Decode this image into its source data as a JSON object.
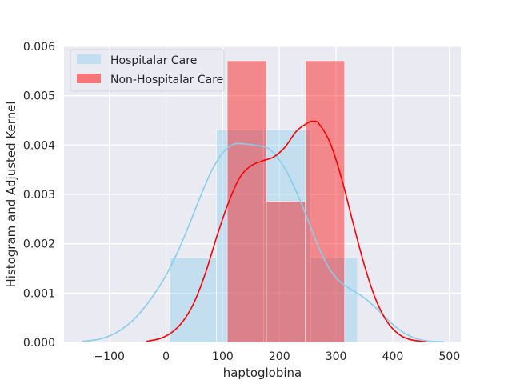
{
  "chart_data": {
    "type": "histogram",
    "title": "",
    "xlabel": "haptoglobina",
    "ylabel": "Histogram and Adjusted Kernel",
    "xlim": [
      -180,
      520
    ],
    "ylim": [
      0,
      0.006
    ],
    "x_ticks": [
      -100,
      0,
      100,
      200,
      300,
      400,
      500
    ],
    "x_tick_labels": [
      "−100",
      "0",
      "100",
      "200",
      "300",
      "400",
      "500"
    ],
    "y_ticks": [
      0.0,
      0.001,
      0.002,
      0.003,
      0.004,
      0.005,
      0.006
    ],
    "y_tick_labels": [
      "0.000",
      "0.001",
      "0.002",
      "0.003",
      "0.004",
      "0.005",
      "0.006"
    ],
    "grid": true,
    "legend_position": "top-left",
    "series": [
      {
        "name": "Hospitalar Care",
        "color": "#87ceeb",
        "bins": [
          {
            "x0": 6,
            "x1": 89,
            "density": 0.00172
          },
          {
            "x0": 89,
            "x1": 172,
            "density": 0.00431
          },
          {
            "x0": 172,
            "x1": 255,
            "density": 0.00431
          },
          {
            "x0": 255,
            "x1": 338,
            "density": 0.00172
          }
        ],
        "kde": {
          "x": [
            -148,
            -120,
            -100,
            -80,
            -60,
            -40,
            -20,
            0,
            20,
            40,
            60,
            80,
            100,
            120,
            140,
            160,
            175,
            190,
            210,
            230,
            250,
            270,
            290,
            310,
            330,
            350,
            370,
            390,
            410,
            430,
            450,
            470,
            490
          ],
          "y": [
            2e-05,
            6e-05,
            0.00013,
            0.00025,
            0.00043,
            0.00068,
            0.00099,
            0.00136,
            0.00182,
            0.00236,
            0.00294,
            0.00347,
            0.00384,
            0.00402,
            0.00402,
            0.00399,
            0.00396,
            0.00384,
            0.00352,
            0.00305,
            0.00249,
            0.00191,
            0.00146,
            0.0012,
            0.00105,
            0.0009,
            0.0007,
            0.00047,
            0.00027,
            0.00013,
            5e-05,
            2e-05,
            1e-05
          ]
        }
      },
      {
        "name": "Non-Hospitalar Care",
        "color": "#ff0000",
        "bins": [
          {
            "x0": 108,
            "x1": 177,
            "density": 0.00571
          },
          {
            "x0": 177,
            "x1": 246,
            "density": 0.00286
          },
          {
            "x0": 246,
            "x1": 315,
            "density": 0.00571
          }
        ],
        "kde": {
          "x": [
            -35,
            -10,
            10,
            30,
            50,
            70,
            90,
            110,
            130,
            150,
            170,
            190,
            210,
            230,
            250,
            260,
            270,
            290,
            310,
            330,
            350,
            370,
            390,
            410,
            430,
            458
          ],
          "y": [
            2e-05,
            8e-05,
            0.0002,
            0.00043,
            0.00082,
            0.00142,
            0.00216,
            0.00283,
            0.00334,
            0.00358,
            0.00368,
            0.00376,
            0.00396,
            0.00428,
            0.00445,
            0.00448,
            0.00443,
            0.00403,
            0.00331,
            0.00242,
            0.00156,
            0.00087,
            0.00042,
            0.00017,
            6e-05,
            1e-05
          ]
        }
      }
    ]
  }
}
